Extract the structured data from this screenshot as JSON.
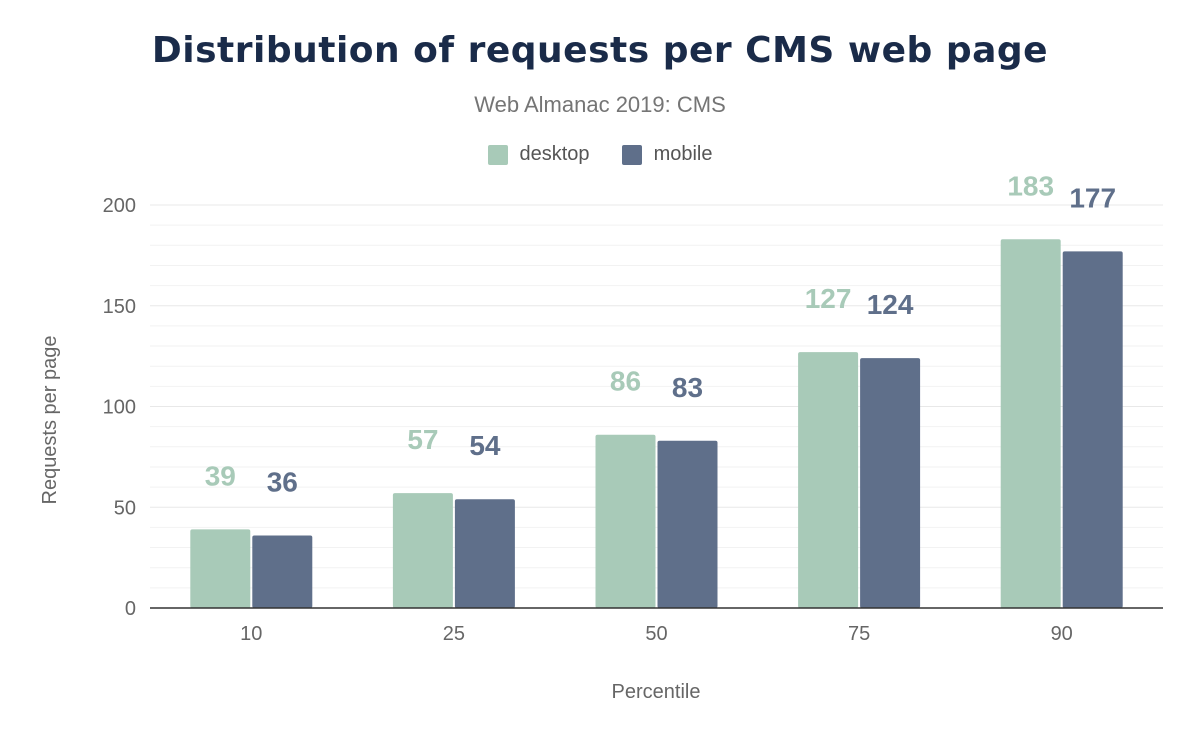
{
  "chart_data": {
    "type": "bar",
    "title": "Distribution of requests per CMS web page",
    "subtitle": "Web Almanac 2019: CMS",
    "xlabel": "Percentile",
    "ylabel": "Requests per page",
    "categories": [
      "10",
      "25",
      "50",
      "75",
      "90"
    ],
    "series": [
      {
        "name": "desktop",
        "color": "#a8cab8",
        "values": [
          39,
          57,
          86,
          127,
          183
        ]
      },
      {
        "name": "mobile",
        "color": "#5f6f8a",
        "values": [
          36,
          54,
          83,
          124,
          177
        ]
      }
    ],
    "ylim": [
      0,
      200
    ],
    "yticks": [
      "0",
      "50",
      "100",
      "150",
      "200"
    ],
    "grid": true,
    "legend": "top-center",
    "data_labels": true
  }
}
